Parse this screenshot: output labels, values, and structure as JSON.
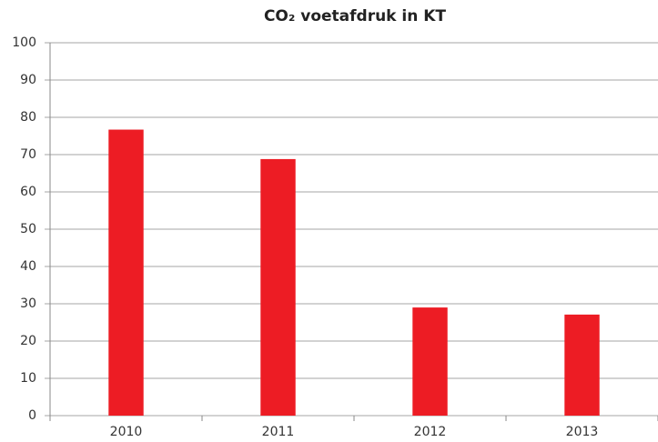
{
  "chart_data": {
    "type": "bar",
    "title": "CO₂ voetafdruk in KT",
    "categories": [
      "2010",
      "2011",
      "2012",
      "2013"
    ],
    "values": [
      76.7,
      68.8,
      29,
      27.1
    ],
    "color": "#ed1c24",
    "ylim": [
      0,
      100
    ],
    "yticks": [
      0,
      10,
      20,
      30,
      40,
      50,
      60,
      70,
      80,
      90,
      100
    ],
    "grid": true
  }
}
